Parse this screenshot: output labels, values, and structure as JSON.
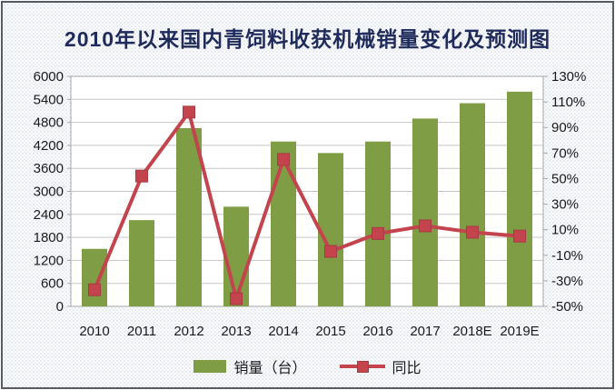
{
  "title": "2010年以来国内青饲料收获机械销量变化及预测图",
  "legend": {
    "bar_label": "销量（台）",
    "line_label": "同比"
  },
  "colors": {
    "bar": "#7E9D44",
    "line": "#C4444E",
    "marker_border": "#A83A44",
    "title_text": "#1F2B5B",
    "grid": "#C6C6C6",
    "plot_border": "#A6A6A6",
    "axis_text": "#1A1A1A",
    "frame_border": "#575C64"
  },
  "chart_data": {
    "type": "bar+line",
    "title": "2010年以来国内青饲料收获机械销量变化及预测图",
    "categories": [
      "2010",
      "2011",
      "2012",
      "2013",
      "2014",
      "2015",
      "2016",
      "2017",
      "2018E",
      "2019E"
    ],
    "series": [
      {
        "name": "销量（台）",
        "type": "bar",
        "axis": "left",
        "values": [
          1500,
          2250,
          4650,
          2600,
          4300,
          4000,
          4300,
          4900,
          5300,
          5600
        ]
      },
      {
        "name": "同比",
        "type": "line",
        "axis": "right",
        "unit": "%",
        "values": [
          -37,
          52,
          102,
          -44,
          65,
          -7,
          7,
          13,
          8,
          5
        ]
      }
    ],
    "left_axis": {
      "min": 0,
      "max": 6000,
      "step": 600,
      "tick_labels": [
        "6000",
        "5400",
        "4800",
        "4200",
        "3600",
        "3000",
        "2400",
        "1800",
        "1200",
        "600",
        "0"
      ]
    },
    "right_axis": {
      "min": -50,
      "max": 130,
      "step": 20,
      "tick_labels": [
        "130%",
        "110%",
        "90%",
        "70%",
        "50%",
        "30%",
        "10%",
        "-10%",
        "-30%",
        "-50%"
      ]
    },
    "grid": "horizontal",
    "legend_position": "bottom"
  }
}
